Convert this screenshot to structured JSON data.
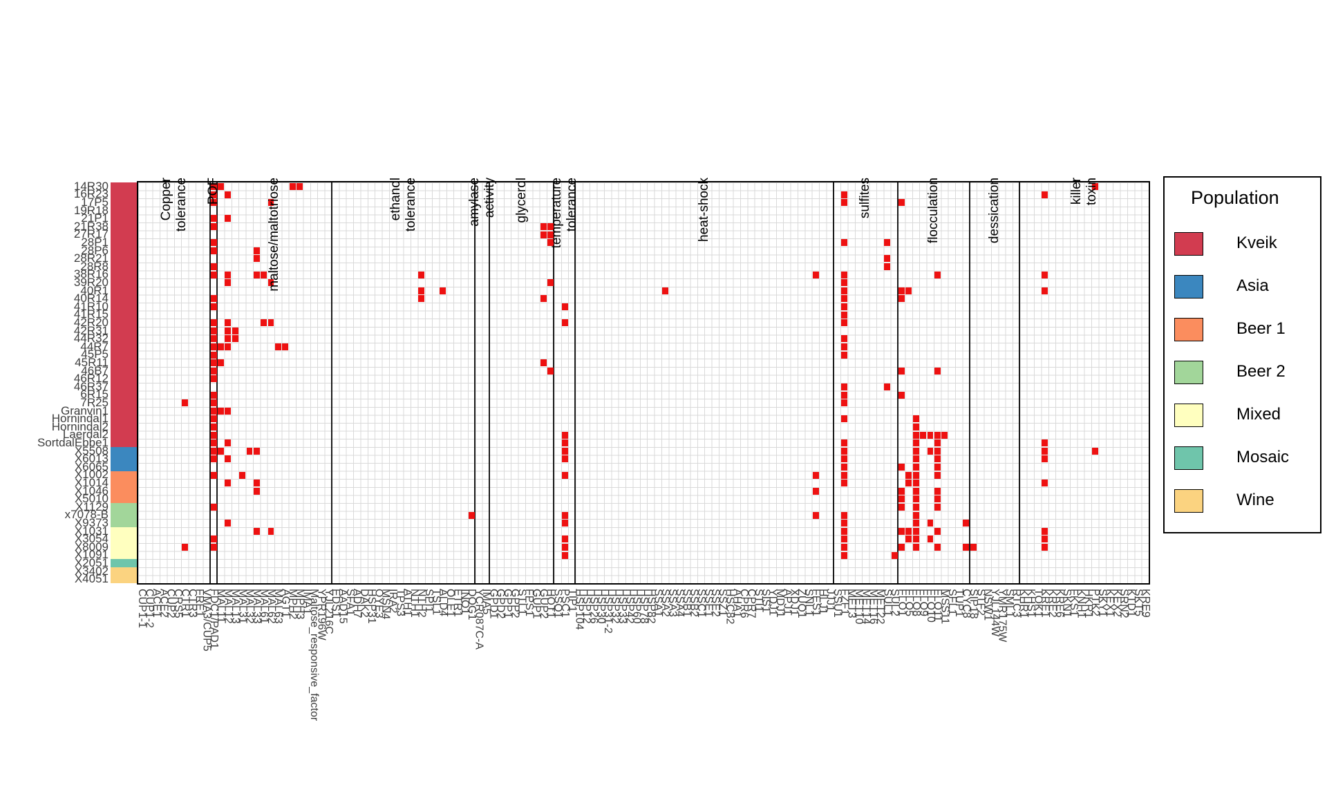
{
  "legend": {
    "title": "Population",
    "entries": [
      {
        "label": "Kveik",
        "color": "#d23c50"
      },
      {
        "label": "Asia",
        "color": "#3b87bf"
      },
      {
        "label": "Beer 1",
        "color": "#fb8d5e"
      },
      {
        "label": "Beer 2",
        "color": "#a2d69a"
      },
      {
        "label": "Mixed",
        "color": "#ffffbf"
      },
      {
        "label": "Mosaic",
        "color": "#6fc5ab"
      },
      {
        "label": "Wine",
        "color": "#fbd380"
      }
    ]
  },
  "chart_data": {
    "type": "heatmap",
    "description": "Gene presence (red cells) per yeast strain, grouped by phenotype category; rows annotated by population",
    "grid": {
      "n_rows": 50,
      "n_cols": 141,
      "gridline_color": "#d9d9d9",
      "cell_color": "#ee1111"
    },
    "category_separator_cols": [
      10,
      11,
      27,
      47,
      49,
      58,
      61,
      97,
      106,
      116,
      123
    ],
    "categories": [
      {
        "label": "Copper tolerance",
        "lines": [
          "Copper",
          "tolerance"
        ],
        "from": 0,
        "to": 10
      },
      {
        "label": "POF",
        "lines": [
          "POF"
        ],
        "from": 10,
        "to": 11
      },
      {
        "label": "maltose/maltotriose",
        "lines": [
          "maltose/maltotriose"
        ],
        "from": 11,
        "to": 27
      },
      {
        "label": "ethanol tolerance",
        "lines": [
          "ethanol",
          "tolerance"
        ],
        "from": 27,
        "to": 47
      },
      {
        "label": "amylase activity",
        "lines": [
          "amylase",
          "activity"
        ],
        "from": 47,
        "to": 49
      },
      {
        "label": "glycerol",
        "lines": [
          "glycerol"
        ],
        "from": 49,
        "to": 58
      },
      {
        "label": "temperature tolerance",
        "lines": [
          "temperature",
          "tolerance"
        ],
        "from": 58,
        "to": 61
      },
      {
        "label": "heat-shock",
        "lines": [
          "heat-shock"
        ],
        "from": 61,
        "to": 97
      },
      {
        "label": "sulfites",
        "lines": [
          "sulfites"
        ],
        "from": 97,
        "to": 106
      },
      {
        "label": "flocculation",
        "lines": [
          "flocculation"
        ],
        "from": 106,
        "to": 116
      },
      {
        "label": "dessication",
        "lines": [
          "dessication"
        ],
        "from": 116,
        "to": 123
      },
      {
        "label": "killer toxin",
        "lines": [
          "killer",
          "toxin"
        ],
        "from": 123,
        "to": 141
      }
    ],
    "rows": [
      {
        "label": "14R30",
        "pop": "Kveik"
      },
      {
        "label": "16R23",
        "pop": "Kveik"
      },
      {
        "label": "17P5",
        "pop": "Kveik"
      },
      {
        "label": "19R18",
        "pop": "Kveik"
      },
      {
        "label": "21P1",
        "pop": "Kveik"
      },
      {
        "label": "21R38",
        "pop": "Kveik"
      },
      {
        "label": "27R17",
        "pop": "Kveik"
      },
      {
        "label": "28P1",
        "pop": "Kveik"
      },
      {
        "label": "28P6",
        "pop": "Kveik"
      },
      {
        "label": "28R21",
        "pop": "Kveik"
      },
      {
        "label": "28R8",
        "pop": "Kveik"
      },
      {
        "label": "38R16",
        "pop": "Kveik"
      },
      {
        "label": "39R20",
        "pop": "Kveik"
      },
      {
        "label": "40R1",
        "pop": "Kveik"
      },
      {
        "label": "40R14",
        "pop": "Kveik"
      },
      {
        "label": "41R10",
        "pop": "Kveik"
      },
      {
        "label": "41R15",
        "pop": "Kveik"
      },
      {
        "label": "42R20",
        "pop": "Kveik"
      },
      {
        "label": "42R31",
        "pop": "Kveik"
      },
      {
        "label": "44R32",
        "pop": "Kveik"
      },
      {
        "label": "44R7",
        "pop": "Kveik"
      },
      {
        "label": "45P5",
        "pop": "Kveik"
      },
      {
        "label": "45R11",
        "pop": "Kveik"
      },
      {
        "label": "46B7",
        "pop": "Kveik"
      },
      {
        "label": "46R12",
        "pop": "Kveik"
      },
      {
        "label": "46R37",
        "pop": "Kveik"
      },
      {
        "label": "6R15",
        "pop": "Kveik"
      },
      {
        "label": "7R25",
        "pop": "Kveik"
      },
      {
        "label": "Granvin1",
        "pop": "Kveik"
      },
      {
        "label": "Hornindal1",
        "pop": "Kveik"
      },
      {
        "label": "Hornindal2",
        "pop": "Kveik"
      },
      {
        "label": "Laerdal2",
        "pop": "Kveik"
      },
      {
        "label": "SortdalEbbe1",
        "pop": "Kveik"
      },
      {
        "label": "X5508",
        "pop": "Asia"
      },
      {
        "label": "X6013",
        "pop": "Asia"
      },
      {
        "label": "X6065",
        "pop": "Asia"
      },
      {
        "label": "X1002",
        "pop": "Beer 1"
      },
      {
        "label": "X1014",
        "pop": "Beer 1"
      },
      {
        "label": "X1046",
        "pop": "Beer 1"
      },
      {
        "label": "X5010",
        "pop": "Beer 1"
      },
      {
        "label": "X1129",
        "pop": "Beer 2"
      },
      {
        "label": "x7078-B",
        "pop": "Beer 2"
      },
      {
        "label": "X9373",
        "pop": "Beer 2"
      },
      {
        "label": "X1031",
        "pop": "Mixed"
      },
      {
        "label": "X3054",
        "pop": "Mixed"
      },
      {
        "label": "X8009",
        "pop": "Mixed"
      },
      {
        "label": "X1091",
        "pop": "Mixed"
      },
      {
        "label": "X2051",
        "pop": "Mosaic"
      },
      {
        "label": "X3402",
        "pop": "Wine"
      },
      {
        "label": "X4051",
        "pop": "Wine"
      }
    ],
    "columns": [
      "CUP1-1",
      "CUP1-2",
      "ACE1",
      "ACE2",
      "CUP2",
      "CRS5",
      "CTR1",
      "CTR3",
      "FRE1",
      "VMA3/CUP5",
      "FDC1/PAD1",
      "MAL11",
      "MAL12",
      "MAL13",
      "MAL31",
      "MAL32",
      "MAL33",
      "MAL61",
      "MAL62",
      "MAL63",
      "AGT1",
      "MPH2",
      "MPH3",
      "IMA1",
      "Maltose_responsive_factor",
      "YPR196W",
      "YJL216C",
      "EDS1",
      "AAD15",
      "SFA1",
      "ADH7",
      "DAK2",
      "HSP31",
      "OYE3",
      "MSN4",
      "IRA2",
      "TPS3",
      "ATH1",
      "NTH1",
      "NTH2",
      "SPI1",
      "TSL1",
      "ALD4",
      "OLE1",
      "ETR1",
      "INO1",
      "DOG1",
      "YCR087C-A",
      "IMA5",
      "GPD1",
      "GPD2",
      "GPP1",
      "GPP2",
      "STL1",
      "FPS1",
      "GUP1",
      "GUP2",
      "HOT1",
      "SSQ1",
      "PSC1",
      "TIP1",
      "HSP104",
      "HSP12",
      "HSP26",
      "HSP30",
      "HSP31-2",
      "HSP32",
      "HSP33",
      "HSP42",
      "HSP60",
      "HSP78",
      "HSP82",
      "SSA1",
      "SSA2",
      "SSA3",
      "SSA4",
      "SSB1",
      "SSB2",
      "SSC1",
      "SSE1",
      "SSE2",
      "SSZ1",
      "HSC82",
      "AHA1",
      "CPR6",
      "CPR7",
      "STI1",
      "SIS1",
      "YDJ1",
      "MDJ1",
      "APJ1",
      "XDJ1",
      "ZUO1",
      "SNL1",
      "FES1",
      "HLJ1",
      "JJJ1",
      "SSU1",
      "FZF1",
      "MET3",
      "MET10",
      "MET14",
      "MET16",
      "MET22",
      "SUL1",
      "SUL2",
      "FLO1",
      "FLO5",
      "FLO8",
      "FLO9",
      "FLO10",
      "FLO11",
      "MSS11",
      "SFL1",
      "TUP1",
      "CYC8",
      "SIP18",
      "STF2",
      "NSW1",
      "YJL144W",
      "YMR175W",
      "SML1",
      "RTC3",
      "KHR1",
      "KHS1",
      "TOK1",
      "KRE1",
      "KRE2",
      "KRE6",
      "SKN1",
      "FKS1",
      "KNH1",
      "HKR1",
      "PTK2",
      "SKY1",
      "KEX1",
      "KEX2",
      "SRN2",
      "KTD1",
      "SKT5",
      "KRE9"
    ],
    "red_cells": [
      [
        10,
        0
      ],
      [
        10,
        1
      ],
      [
        10,
        2
      ],
      [
        10,
        4
      ],
      [
        10,
        5
      ],
      [
        10,
        7
      ],
      [
        10,
        8
      ],
      [
        10,
        10
      ],
      [
        10,
        11
      ],
      [
        10,
        14
      ],
      [
        10,
        15
      ],
      [
        10,
        17
      ],
      [
        10,
        18
      ],
      [
        10,
        19
      ],
      [
        10,
        20
      ],
      [
        10,
        21
      ],
      [
        10,
        22
      ],
      [
        10,
        23
      ],
      [
        10,
        24
      ],
      [
        10,
        26
      ],
      [
        10,
        27
      ],
      [
        10,
        28
      ],
      [
        10,
        29
      ],
      [
        10,
        30
      ],
      [
        10,
        31
      ],
      [
        10,
        32
      ],
      [
        10,
        33
      ],
      [
        10,
        34
      ],
      [
        10,
        36
      ],
      [
        10,
        40
      ],
      [
        10,
        44
      ],
      [
        10,
        45
      ],
      [
        11,
        0
      ],
      [
        11,
        20
      ],
      [
        11,
        22
      ],
      [
        11,
        28
      ],
      [
        11,
        33
      ],
      [
        6,
        27
      ],
      [
        6,
        45
      ],
      [
        12,
        1
      ],
      [
        18,
        2
      ],
      [
        21,
        0
      ],
      [
        22,
        0
      ],
      [
        12,
        4
      ],
      [
        16,
        8
      ],
      [
        16,
        9
      ],
      [
        12,
        11
      ],
      [
        12,
        12
      ],
      [
        16,
        11
      ],
      [
        17,
        11
      ],
      [
        18,
        12
      ],
      [
        12,
        17
      ],
      [
        17,
        17
      ],
      [
        18,
        17
      ],
      [
        12,
        18
      ],
      [
        12,
        19
      ],
      [
        13,
        18
      ],
      [
        13,
        19
      ],
      [
        12,
        20
      ],
      [
        19,
        20
      ],
      [
        20,
        20
      ],
      [
        12,
        28
      ],
      [
        12,
        32
      ],
      [
        12,
        34
      ],
      [
        15,
        33
      ],
      [
        16,
        33
      ],
      [
        14,
        36
      ],
      [
        12,
        37
      ],
      [
        16,
        37
      ],
      [
        16,
        38
      ],
      [
        12,
        42
      ],
      [
        16,
        43
      ],
      [
        18,
        43
      ],
      [
        39,
        11
      ],
      [
        39,
        13
      ],
      [
        39,
        14
      ],
      [
        42,
        13
      ],
      [
        46,
        41
      ],
      [
        56,
        5
      ],
      [
        57,
        5
      ],
      [
        56,
        6
      ],
      [
        57,
        6
      ],
      [
        57,
        7
      ],
      [
        57,
        12
      ],
      [
        56,
        14
      ],
      [
        56,
        22
      ],
      [
        57,
        23
      ],
      [
        59,
        15
      ],
      [
        59,
        17
      ],
      [
        59,
        31
      ],
      [
        59,
        32
      ],
      [
        59,
        33
      ],
      [
        59,
        34
      ],
      [
        59,
        36
      ],
      [
        59,
        41
      ],
      [
        59,
        42
      ],
      [
        59,
        44
      ],
      [
        59,
        45
      ],
      [
        59,
        46
      ],
      [
        73,
        13
      ],
      [
        94,
        11
      ],
      [
        94,
        36
      ],
      [
        94,
        38
      ],
      [
        94,
        41
      ],
      [
        98,
        1
      ],
      [
        98,
        2
      ],
      [
        98,
        7
      ],
      [
        98,
        11
      ],
      [
        98,
        12
      ],
      [
        98,
        13
      ],
      [
        98,
        14
      ],
      [
        98,
        15
      ],
      [
        98,
        16
      ],
      [
        98,
        17
      ],
      [
        98,
        19
      ],
      [
        98,
        20
      ],
      [
        98,
        21
      ],
      [
        98,
        25
      ],
      [
        98,
        26
      ],
      [
        98,
        27
      ],
      [
        98,
        29
      ],
      [
        98,
        32
      ],
      [
        98,
        33
      ],
      [
        98,
        34
      ],
      [
        98,
        35
      ],
      [
        98,
        36
      ],
      [
        98,
        37
      ],
      [
        98,
        41
      ],
      [
        98,
        42
      ],
      [
        98,
        43
      ],
      [
        98,
        44
      ],
      [
        98,
        45
      ],
      [
        98,
        46
      ],
      [
        104,
        7
      ],
      [
        104,
        9
      ],
      [
        104,
        10
      ],
      [
        104,
        25
      ],
      [
        105,
        46
      ],
      [
        106,
        2
      ],
      [
        106,
        13
      ],
      [
        106,
        14
      ],
      [
        106,
        23
      ],
      [
        106,
        26
      ],
      [
        106,
        35
      ],
      [
        106,
        38
      ],
      [
        106,
        39
      ],
      [
        106,
        40
      ],
      [
        106,
        43
      ],
      [
        106,
        45
      ],
      [
        107,
        13
      ],
      [
        107,
        36
      ],
      [
        107,
        37
      ],
      [
        107,
        43
      ],
      [
        107,
        44
      ],
      [
        108,
        29
      ],
      [
        108,
        30
      ],
      [
        108,
        31
      ],
      [
        108,
        32
      ],
      [
        108,
        33
      ],
      [
        108,
        34
      ],
      [
        108,
        35
      ],
      [
        108,
        36
      ],
      [
        108,
        37
      ],
      [
        108,
        38
      ],
      [
        108,
        39
      ],
      [
        108,
        40
      ],
      [
        108,
        41
      ],
      [
        108,
        42
      ],
      [
        108,
        43
      ],
      [
        108,
        44
      ],
      [
        108,
        45
      ],
      [
        109,
        31
      ],
      [
        110,
        31
      ],
      [
        110,
        33
      ],
      [
        110,
        42
      ],
      [
        110,
        44
      ],
      [
        111,
        11
      ],
      [
        111,
        23
      ],
      [
        111,
        31
      ],
      [
        111,
        32
      ],
      [
        111,
        33
      ],
      [
        111,
        34
      ],
      [
        111,
        35
      ],
      [
        111,
        36
      ],
      [
        111,
        38
      ],
      [
        111,
        39
      ],
      [
        111,
        40
      ],
      [
        111,
        43
      ],
      [
        111,
        45
      ],
      [
        112,
        31
      ],
      [
        115,
        42
      ],
      [
        115,
        45
      ],
      [
        116,
        45
      ],
      [
        126,
        1
      ],
      [
        126,
        11
      ],
      [
        126,
        13
      ],
      [
        126,
        32
      ],
      [
        126,
        33
      ],
      [
        126,
        34
      ],
      [
        126,
        37
      ],
      [
        126,
        43
      ],
      [
        126,
        44
      ],
      [
        126,
        45
      ],
      [
        133,
        0
      ],
      [
        133,
        33
      ]
    ],
    "population_colors": {
      "Kveik": "#d23c50",
      "Asia": "#3b87bf",
      "Beer 1": "#fb8d5e",
      "Beer 2": "#a2d69a",
      "Mixed": "#ffffbf",
      "Mosaic": "#6fc5ab",
      "Wine": "#fbd380"
    },
    "legend_position": "right"
  }
}
